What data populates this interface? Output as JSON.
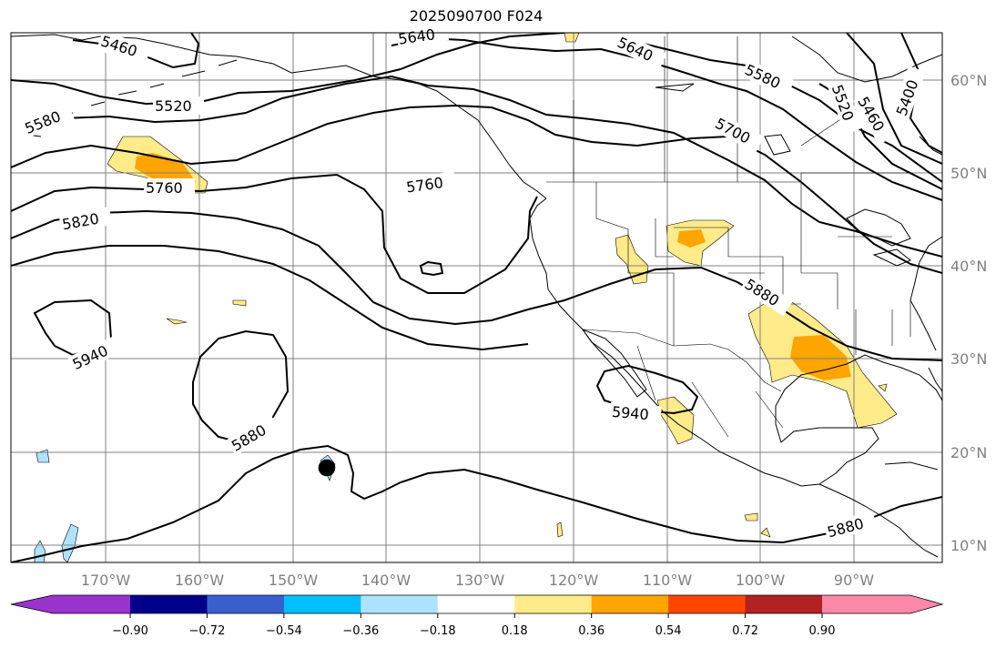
{
  "title": "2025090700 F024",
  "map": {
    "lon_labels": [
      "170°W",
      "160°W",
      "150°W",
      "140°W",
      "130°W",
      "120°W",
      "110°W",
      "100°W",
      "90°W"
    ],
    "lat_labels": [
      "60°N",
      "50°N",
      "40°N",
      "30°N",
      "20°N",
      "10°N"
    ],
    "contour_labels": [
      "5460",
      "5640",
      "5640",
      "5580",
      "5520",
      "5400",
      "5460",
      "5520",
      "5580",
      "5700",
      "5760",
      "5760",
      "5820",
      "5880",
      "5940",
      "5880",
      "5940",
      "5880"
    ],
    "colors": {
      "coast": "#000000",
      "grid": "#808080",
      "contour": "#000000",
      "fill_low": "#ffeb8a",
      "fill_mid": "#ffa500",
      "fill_neg": "#aee3ff"
    }
  },
  "colorbar": {
    "ticks": [
      "−0.90",
      "−0.72",
      "−0.54",
      "−0.36",
      "−0.18",
      "0.18",
      "0.36",
      "0.54",
      "0.72",
      "0.90"
    ],
    "colors": [
      "#9a32cd",
      "#00008b",
      "#3a5fcd",
      "#00bfff",
      "#aee3ff",
      "#ffffff",
      "#ffeb8a",
      "#ffa500",
      "#ff4500",
      "#b22222",
      "#ff88aa"
    ]
  }
}
